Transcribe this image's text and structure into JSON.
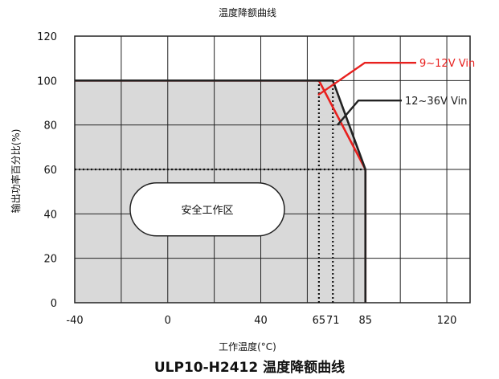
{
  "caption": "ULP10-H2412 温度降额曲线",
  "chart_data": {
    "type": "line",
    "title": "温度降额曲线",
    "xlabel": "工作温度(°C)",
    "ylabel": "输出功率百分比(%)",
    "xlim": [
      -40,
      130
    ],
    "ylim": [
      0,
      120
    ],
    "x_ticks": [
      -40,
      0,
      40,
      65,
      71,
      85,
      120
    ],
    "y_ticks": [
      0,
      20,
      40,
      60,
      80,
      100,
      120
    ],
    "grid_x": [
      -40,
      -20,
      0,
      20,
      40,
      60,
      80,
      100,
      120,
      130
    ],
    "grid_y": [
      0,
      20,
      40,
      60,
      80,
      100,
      120
    ],
    "grid": true,
    "safe_zone_label": "安全工作区",
    "safe_zone_fill": "#d9d9d9",
    "reference_lines": [
      {
        "orientation": "horizontal",
        "value": 60,
        "from": -40,
        "to": 85,
        "style": "dotted"
      },
      {
        "orientation": "vertical",
        "value": 65,
        "from": 0,
        "to": 100,
        "style": "dotted"
      },
      {
        "orientation": "vertical",
        "value": 71,
        "from": 0,
        "to": 100,
        "style": "dotted"
      }
    ],
    "series": [
      {
        "name": "9~12V Vin",
        "color": "#e8201e",
        "x": [
          -40,
          65,
          85,
          85
        ],
        "y": [
          100,
          100,
          60,
          0
        ]
      },
      {
        "name": "12~36V Vin",
        "color": "#222222",
        "x": [
          -40,
          71,
          85,
          85
        ],
        "y": [
          100,
          100,
          60,
          0
        ]
      }
    ],
    "legend_placement": "right, with pointer lines"
  }
}
